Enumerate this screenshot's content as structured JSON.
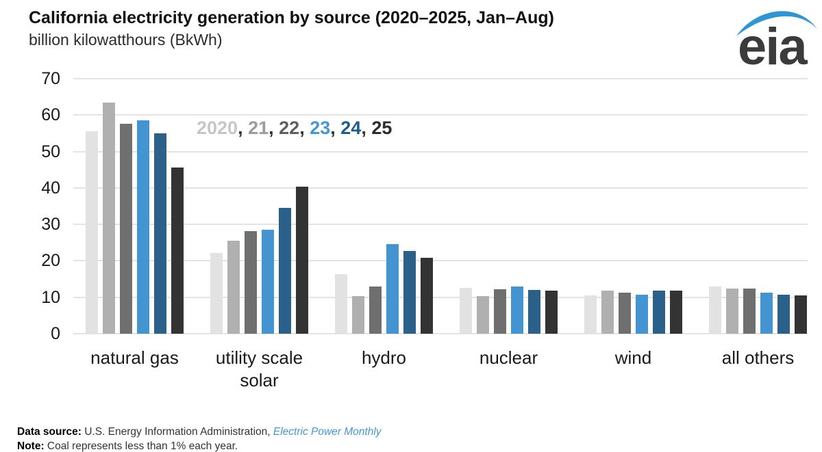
{
  "header": {
    "title": "California electricity generation by source (2020–2025, Jan–Aug)",
    "subtitle": "billion kilowatthours (BkWh)",
    "logo_text": "eia",
    "logo_blue": "#2e96d3",
    "logo_text_color": "#3b3b3b"
  },
  "legend": {
    "separator": ", ",
    "separator_color": "#333333",
    "items": [
      {
        "label": "2020",
        "color": "#c6c6c6"
      },
      {
        "label": "21",
        "color": "#9b9b9b"
      },
      {
        "label": "22",
        "color": "#5f5f5f"
      },
      {
        "label": "23",
        "color": "#4596d6"
      },
      {
        "label": "24",
        "color": "#1f5c87"
      },
      {
        "label": "25",
        "color": "#2b2b2b"
      }
    ]
  },
  "chart_data": {
    "type": "bar",
    "title": "California electricity generation by source (2020–2025, Jan–Aug)",
    "ylabel": "billion kilowatthours (BkWh)",
    "xlabel": "",
    "ylim": [
      0,
      70
    ],
    "yticks": [
      0,
      10,
      20,
      30,
      40,
      50,
      60,
      70
    ],
    "grid": true,
    "gridline_color": "#e3e3e3",
    "legend_position": "inside-top-left",
    "categories": [
      "natural gas",
      "utility scale solar",
      "hydro",
      "nuclear",
      "wind",
      "all others"
    ],
    "series": [
      {
        "name": "2020",
        "color": "#e2e2e2",
        "values": [
          55.5,
          22.1,
          16.3,
          12.5,
          10.6,
          13.0
        ]
      },
      {
        "name": "21",
        "color": "#b0b0b0",
        "values": [
          63.4,
          25.5,
          10.3,
          10.4,
          11.8,
          12.3
        ]
      },
      {
        "name": "22",
        "color": "#6f6f6f",
        "values": [
          57.7,
          28.1,
          12.9,
          12.2,
          11.2,
          12.3
        ]
      },
      {
        "name": "23",
        "color": "#4494d2",
        "values": [
          58.6,
          28.6,
          24.5,
          13.0,
          10.7,
          11.2
        ]
      },
      {
        "name": "24",
        "color": "#2a618b",
        "values": [
          55.0,
          34.5,
          22.8,
          12.0,
          11.9,
          10.7
        ]
      },
      {
        "name": "25",
        "color": "#333333",
        "values": [
          45.6,
          40.3,
          20.9,
          11.9,
          11.8,
          10.5
        ]
      }
    ]
  },
  "footer": {
    "source_label": "Data source:",
    "source_text": " U.S. Energy Information Administration, ",
    "source_link": "Electric Power Monthly",
    "note_label": "Note:",
    "note_text": " Coal represents less than 1% each year."
  }
}
